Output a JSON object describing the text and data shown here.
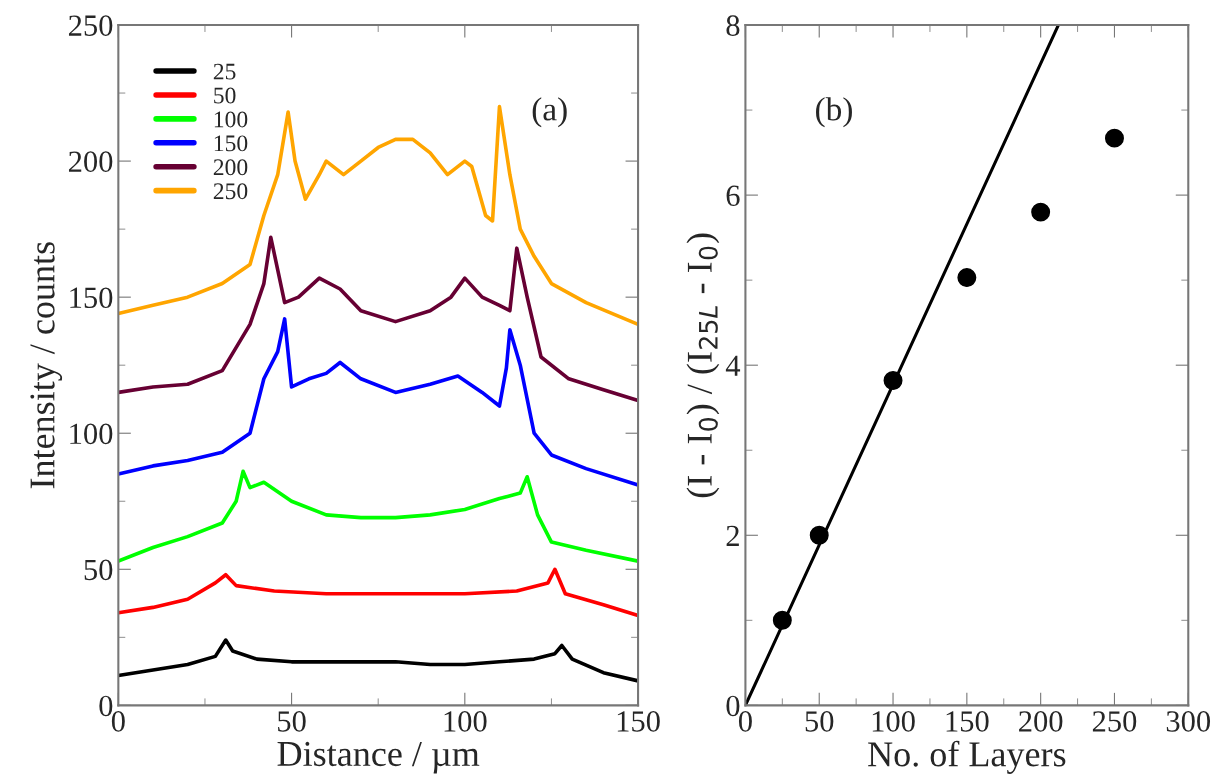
{
  "chart_data": [
    {
      "type": "line",
      "xlabel": "Distance / µm",
      "ylabel": "Intensity / counts",
      "annotations": [
        "(a)"
      ],
      "legend": "top left",
      "grid": false,
      "xlim": [
        0,
        150
      ],
      "xticks": [
        0,
        {
          "value": 25,
          "label": null
        },
        50,
        {
          "value": 75,
          "label": null
        },
        100,
        {
          "value": 125,
          "label": null
        },
        150
      ],
      "ylim": [
        0,
        250
      ],
      "yticks": [
        0,
        {
          "value": 25,
          "label": null
        },
        50,
        {
          "value": 75,
          "label": null
        },
        100,
        {
          "value": 125,
          "label": null
        },
        150,
        {
          "value": 175,
          "label": null
        },
        200,
        {
          "value": 225,
          "label": null
        },
        250
      ],
      "series": [
        {
          "name": "25",
          "color": "#000000",
          "x": [
            0,
            10,
            20,
            28,
            31,
            33,
            40,
            50,
            60,
            70,
            80,
            90,
            100,
            110,
            120,
            126,
            128,
            131,
            140,
            150
          ],
          "values": [
            11,
            13,
            15,
            18,
            24,
            20,
            17,
            16,
            16,
            16,
            16,
            15,
            15,
            16,
            17,
            19,
            22,
            17,
            12,
            9
          ]
        },
        {
          "name": "50",
          "color": "#ff0000",
          "x": [
            0,
            10,
            20,
            28,
            31,
            34,
            45,
            60,
            80,
            100,
            115,
            124,
            126,
            129,
            140,
            150
          ],
          "values": [
            34,
            36,
            39,
            45,
            48,
            44,
            42,
            41,
            41,
            41,
            42,
            45,
            50,
            41,
            37,
            33
          ]
        },
        {
          "name": "100",
          "color": "#00ff00",
          "x": [
            0,
            10,
            20,
            30,
            34,
            36,
            38,
            42,
            50,
            60,
            70,
            80,
            90,
            100,
            110,
            116,
            118,
            121,
            125,
            135,
            150
          ],
          "values": [
            53,
            58,
            62,
            67,
            75,
            86,
            80,
            82,
            75,
            70,
            69,
            69,
            70,
            72,
            76,
            78,
            84,
            70,
            60,
            57,
            53
          ]
        },
        {
          "name": "150",
          "color": "#0000ff",
          "x": [
            0,
            10,
            20,
            30,
            38,
            42,
            46,
            48,
            50,
            55,
            60,
            64,
            70,
            80,
            90,
            98,
            105,
            110,
            112,
            113,
            116,
            120,
            125,
            135,
            150
          ],
          "values": [
            85,
            88,
            90,
            93,
            100,
            120,
            130,
            142,
            117,
            120,
            122,
            126,
            120,
            115,
            118,
            121,
            115,
            110,
            124,
            138,
            125,
            100,
            92,
            87,
            81
          ]
        },
        {
          "name": "200",
          "color": "#670033",
          "x": [
            0,
            10,
            20,
            30,
            38,
            42,
            44,
            46,
            48,
            52,
            58,
            64,
            70,
            80,
            90,
            96,
            100,
            105,
            110,
            113,
            115,
            118,
            122,
            130,
            140,
            150
          ],
          "values": [
            115,
            117,
            118,
            123,
            140,
            155,
            172,
            160,
            148,
            150,
            157,
            153,
            145,
            141,
            145,
            150,
            157,
            150,
            147,
            145,
            168,
            150,
            128,
            120,
            116,
            112
          ]
        },
        {
          "name": "250",
          "color": "#ffa500",
          "x": [
            0,
            10,
            20,
            30,
            38,
            42,
            46,
            49,
            51,
            54,
            58,
            60,
            65,
            70,
            75,
            80,
            85,
            90,
            95,
            100,
            102,
            106,
            108,
            110,
            113,
            116,
            120,
            125,
            135,
            150
          ],
          "values": [
            144,
            147,
            150,
            155,
            162,
            180,
            195,
            218,
            200,
            186,
            195,
            200,
            195,
            200,
            205,
            208,
            208,
            203,
            195,
            200,
            198,
            180,
            178,
            220,
            195,
            175,
            165,
            155,
            148,
            140
          ]
        }
      ]
    },
    {
      "type": "scatter",
      "xlabel": "No. of Layers",
      "ylabel": "(I - I$_{0}$) / (I$_{25L}$ - I$_{0}$)",
      "annotations": [
        "(b)"
      ],
      "grid": false,
      "xlim": [
        0,
        300
      ],
      "xticks": [
        0,
        {
          "value": 25,
          "label": null
        },
        50,
        {
          "value": 75,
          "label": null
        },
        100,
        {
          "value": 125,
          "label": null
        },
        150,
        {
          "value": 175,
          "label": null
        },
        200,
        {
          "value": 225,
          "label": null
        },
        250,
        {
          "value": 275,
          "label": null
        },
        300
      ],
      "ylim": [
        0,
        8
      ],
      "yticks": [
        0,
        {
          "value": 1,
          "label": null
        },
        2,
        {
          "value": 3,
          "label": null
        },
        4,
        {
          "value": 5,
          "label": null
        },
        6,
        {
          "value": 7,
          "label": null
        },
        8
      ],
      "series": [
        {
          "type": "scatter",
          "marker": "circle",
          "color": "#000000",
          "x": [
            25,
            50,
            100,
            150,
            200,
            250
          ],
          "values": [
            1,
            2,
            3.82,
            5.03,
            5.8,
            6.67
          ]
        },
        {
          "type": "line",
          "color": "#000000",
          "x": [
            0,
            212
          ],
          "values": [
            0,
            8
          ]
        }
      ]
    }
  ]
}
